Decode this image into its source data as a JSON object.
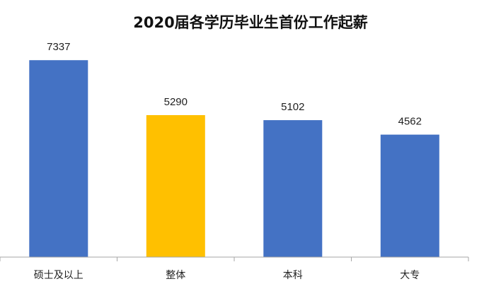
{
  "chart_data": {
    "type": "bar",
    "title": "2020届各学历毕业生首份工作起薪",
    "categories": [
      "硕士及以上",
      "整体",
      "本科",
      "大专"
    ],
    "values": [
      7337,
      5290,
      5102,
      4562
    ],
    "data_labels": [
      "7337",
      "5290",
      "5102",
      "4562"
    ],
    "xlabel": "",
    "ylabel": "",
    "ylim": [
      0,
      8000
    ],
    "grid": false,
    "legend": "none",
    "colors": {
      "default_bar": "#4472C4",
      "highlight_bar": "#FFC000",
      "axis": "#A6A6A6"
    },
    "highlight_index": 1
  }
}
